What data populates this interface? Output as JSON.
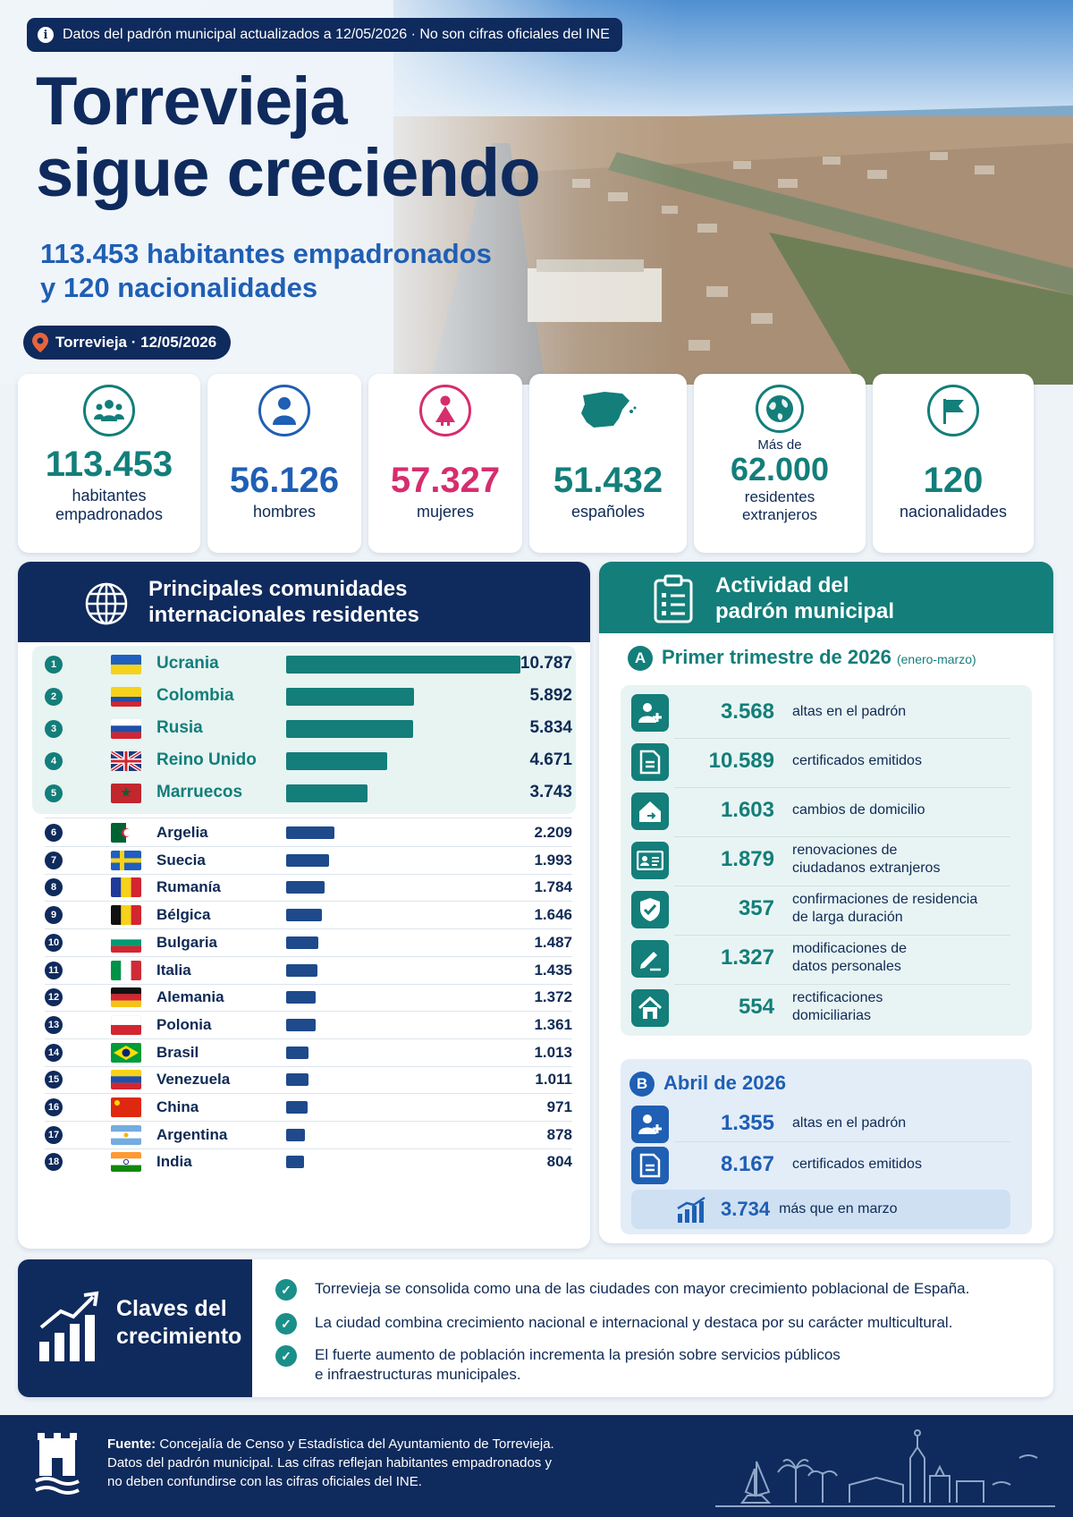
{
  "top_pill": "Datos del padrón municipal actualizados a 12/05/2026 · No son cifras oficiales del INE",
  "hero": {
    "title_line1": "Torrevieja",
    "title_line2": "sigue creciendo",
    "subtitle_line1": "113.453 habitantes empadronados",
    "subtitle_line2": "y 120 nacionalidades",
    "location": "Torrevieja · 12/05/2026"
  },
  "stats": [
    {
      "value": "113.453",
      "label": "habitantes empadronados",
      "pre": "",
      "icon": "people-icon",
      "color": "#137e7a"
    },
    {
      "value": "56.126",
      "label": "hombres",
      "pre": "",
      "icon": "man-icon",
      "color": "#1f5fb4"
    },
    {
      "value": "57.327",
      "label": "mujeres",
      "pre": "",
      "icon": "woman-icon",
      "color": "#d62d6e"
    },
    {
      "value": "51.432",
      "label": "españoles",
      "pre": "",
      "icon": "spain-map-icon",
      "color": "#137e7a"
    },
    {
      "value": "62.000",
      "label": "residentes extranjeros",
      "pre": "Más de",
      "icon": "globe-icon",
      "color": "#137e7a"
    },
    {
      "value": "120",
      "label": "nacionalidades",
      "pre": "",
      "icon": "flag-icon",
      "color": "#137e7a"
    }
  ],
  "communities": {
    "title_line1": "Principales comunidades",
    "title_line2": "internacionales residentes",
    "rows": [
      {
        "rank": "1",
        "country": "Ucrania",
        "value": "10.787",
        "n": 10787
      },
      {
        "rank": "2",
        "country": "Colombia",
        "value": "5.892",
        "n": 5892
      },
      {
        "rank": "3",
        "country": "Rusia",
        "value": "5.834",
        "n": 5834
      },
      {
        "rank": "4",
        "country": "Reino Unido",
        "value": "4.671",
        "n": 4671
      },
      {
        "rank": "5",
        "country": "Marruecos",
        "value": "3.743",
        "n": 3743
      },
      {
        "rank": "6",
        "country": "Argelia",
        "value": "2.209",
        "n": 2209
      },
      {
        "rank": "7",
        "country": "Suecia",
        "value": "1.993",
        "n": 1993
      },
      {
        "rank": "8",
        "country": "Rumanía",
        "value": "1.784",
        "n": 1784
      },
      {
        "rank": "9",
        "country": "Bélgica",
        "value": "1.646",
        "n": 1646
      },
      {
        "rank": "10",
        "country": "Bulgaria",
        "value": "1.487",
        "n": 1487
      },
      {
        "rank": "11",
        "country": "Italia",
        "value": "1.435",
        "n": 1435
      },
      {
        "rank": "12",
        "country": "Alemania",
        "value": "1.372",
        "n": 1372
      },
      {
        "rank": "13",
        "country": "Polonia",
        "value": "1.361",
        "n": 1361
      },
      {
        "rank": "14",
        "country": "Brasil",
        "value": "1.013",
        "n": 1013
      },
      {
        "rank": "15",
        "country": "Venezuela",
        "value": "1.011",
        "n": 1011
      },
      {
        "rank": "16",
        "country": "China",
        "value": "971",
        "n": 971
      },
      {
        "rank": "17",
        "country": "Argentina",
        "value": "878",
        "n": 878
      },
      {
        "rank": "18",
        "country": "India",
        "value": "804",
        "n": 804
      }
    ]
  },
  "activity": {
    "title_line1": "Actividad del",
    "title_line2": "padrón municipal",
    "section_a": {
      "badge": "A",
      "title": "Primer trimestre de 2026",
      "note": "(enero-marzo)",
      "rows": [
        {
          "value": "3.568",
          "label1": "altas en el padrón",
          "label2": "",
          "icon": "add-user-icon"
        },
        {
          "value": "10.589",
          "label1": "certificados emitidos",
          "label2": "",
          "icon": "document-icon"
        },
        {
          "value": "1.603",
          "label1": "cambios de domicilio",
          "label2": "",
          "icon": "house-move-icon"
        },
        {
          "value": "1.879",
          "label1": "renovaciones de",
          "label2": "ciudadanos extranjeros",
          "icon": "id-card-icon"
        },
        {
          "value": "357",
          "label1": "confirmaciones de residencia",
          "label2": "de larga duración",
          "icon": "shield-check-icon"
        },
        {
          "value": "1.327",
          "label1": "modificaciones de",
          "label2": "datos personales",
          "icon": "edit-icon"
        },
        {
          "value": "554",
          "label1": "rectificaciones",
          "label2": "domiciliarias",
          "icon": "home-icon"
        }
      ]
    },
    "section_b": {
      "badge": "B",
      "title": "Abril de 2026",
      "rows": [
        {
          "value": "1.355",
          "label1": "altas en el padrón",
          "icon": "add-user-icon"
        },
        {
          "value": "8.167",
          "label1": "certificados emitidos",
          "icon": "document-icon"
        }
      ],
      "highlight_value": "3.734",
      "highlight_label": "más que en marzo"
    }
  },
  "keys": {
    "title_line1": "Claves del",
    "title_line2": "crecimiento",
    "items": [
      {
        "line1": "Torrevieja se consolida como una de las ciudades con mayor crecimiento poblacional de España.",
        "line2": ""
      },
      {
        "line1": "La ciudad combina crecimiento nacional e internacional y destaca por su carácter multicultural.",
        "line2": ""
      },
      {
        "line1": "El fuerte aumento de población incrementa la presión sobre servicios públicos",
        "line2": "e infraestructuras municipales."
      }
    ]
  },
  "footer": {
    "source_label": "Fuente:",
    "source_text": "Concejalía de Censo y Estadística del Ayuntamiento de Torrevieja.",
    "line2": "Datos del padrón municipal. Las cifras reflejan habitantes empadronados y",
    "line3": "no deben confundirse con las cifras oficiales del INE."
  },
  "colors": {
    "navy": "#0f2a5c",
    "teal": "#137e7a",
    "blue": "#1f5fb4",
    "pink": "#d62d6e"
  }
}
